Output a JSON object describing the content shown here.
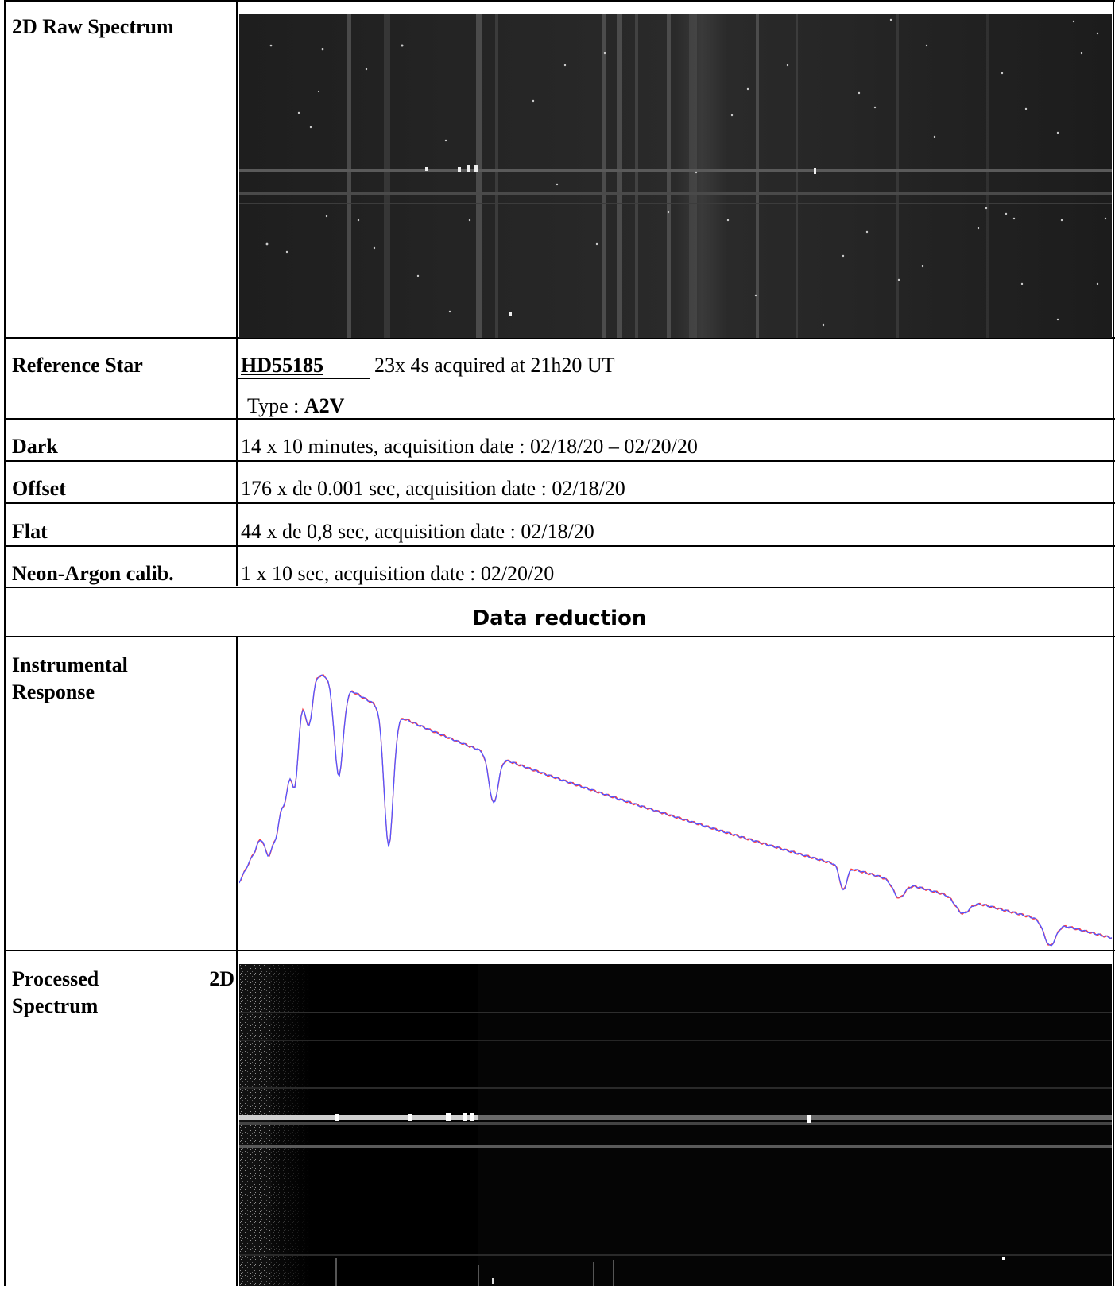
{
  "rows": {
    "raw_spectrum": {
      "label": "2D Raw Spectrum"
    },
    "reference_star": {
      "label": "Reference Star",
      "star_name": "HD55185",
      "type_prefix": "Type : ",
      "type_value": "A2V",
      "acquisition": "23x 4s acquired at 21h20 UT"
    },
    "dark": {
      "label": "Dark",
      "value": "14 x 10 minutes, acquisition date : 02/18/20 – 02/20/20"
    },
    "offset": {
      "label": "Offset",
      "value": "176 x de 0.001 sec, acquisition date : 02/18/20"
    },
    "flat": {
      "label": "Flat",
      "value": "44 x de 0,8 sec, acquisition date : 02/18/20"
    },
    "neon": {
      "label": "Neon-Argon calib.",
      "value": "1 x 10 sec, acquisition date : 02/20/20"
    },
    "data_reduction": {
      "title": "Data reduction"
    },
    "instrumental_response": {
      "label_line1": "Instrumental",
      "label_line2": "Response"
    },
    "processed": {
      "label_line1_a": "Processed",
      "label_line1_b": "2D",
      "label_line2": "Spectrum"
    }
  },
  "colors": {
    "response_red": "#ff3b3b",
    "response_blue": "#5555ff",
    "image_dark": "#1a1a1a"
  }
}
